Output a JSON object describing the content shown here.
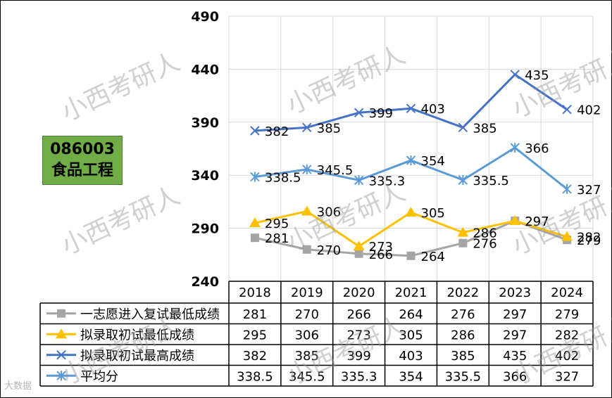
{
  "badge": {
    "line1": "086003",
    "line2": "食品工程"
  },
  "watermark": "小西考研人",
  "footer_logo": "大数据",
  "chart_data": {
    "type": "line",
    "title": "",
    "xlabel": "",
    "ylabel": "",
    "categories": [
      "2018",
      "2019",
      "2020",
      "2021",
      "2022",
      "2023",
      "2024"
    ],
    "ylim": [
      240,
      490
    ],
    "yticks": [
      "240",
      "290",
      "340",
      "390",
      "440",
      "490"
    ],
    "grid": true,
    "legend_placement": "data-table-left",
    "series": [
      {
        "name": "一志愿进入复试最低成绩",
        "color": "#a5a5a5",
        "marker": "square",
        "values": [
          281,
          270,
          266,
          264,
          276,
          297,
          279
        ],
        "labels": [
          "281",
          "270",
          "266",
          "264",
          "276",
          "297",
          "279"
        ]
      },
      {
        "name": "拟录取初试最低成绩",
        "color": "#ffc000",
        "marker": "triangle",
        "values": [
          295,
          306,
          273,
          305,
          286,
          297,
          282
        ],
        "labels": [
          "295",
          "306",
          "273",
          "305",
          "286",
          "297",
          "282"
        ]
      },
      {
        "name": "拟录取初试最高成绩",
        "color": "#4472c4",
        "marker": "x",
        "values": [
          382,
          385,
          399,
          403,
          385,
          435,
          402
        ],
        "labels": [
          "382",
          "385",
          "399",
          "403",
          "385",
          "435",
          "402"
        ]
      },
      {
        "name": "平均分",
        "color": "#5b9bd5",
        "marker": "star",
        "values": [
          338.5,
          345.5,
          335.3,
          354,
          335.5,
          366,
          327
        ],
        "labels": [
          "338.5",
          "345.5",
          "335.3",
          "354",
          "335.5",
          "366",
          "327"
        ]
      }
    ]
  }
}
